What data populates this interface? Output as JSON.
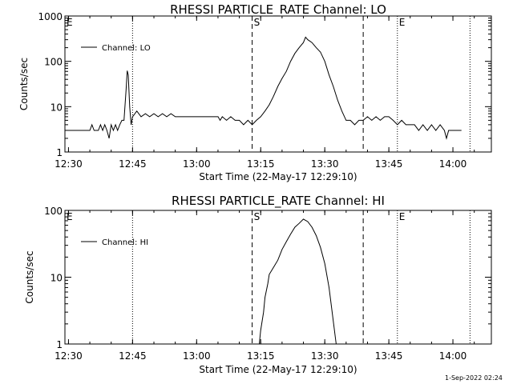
{
  "footer_timestamp": "1-Sep-2022 02:24",
  "chart_data": [
    {
      "type": "line",
      "title": "RHESSI PARTICLE_RATE Channel: LO",
      "xlabel": "Start Time (22-May-17 12:29:10)",
      "ylabel": "Counts/sec",
      "x_ticks": [
        "12:30",
        "12:45",
        "13:00",
        "13:15",
        "13:30",
        "13:45",
        "14:00"
      ],
      "y_ticks": [
        "1",
        "10",
        "100",
        "1000"
      ],
      "y_scale": "log",
      "ylim": [
        1,
        1000
      ],
      "xlim": [
        "12:29:10",
        "14:09"
      ],
      "grid": false,
      "legend_placement": "top-left",
      "series": [
        {
          "name": "Channel: LO",
          "points": [
            [
              "12:29:10",
              3
            ],
            [
              "12:35",
              3
            ],
            [
              "12:35:30",
              4
            ],
            [
              "12:36",
              3
            ],
            [
              "12:37",
              3
            ],
            [
              "12:37:30",
              4
            ],
            [
              "12:38",
              3
            ],
            [
              "12:38:30",
              4
            ],
            [
              "12:39",
              3
            ],
            [
              "12:39:30",
              2
            ],
            [
              "12:40",
              4
            ],
            [
              "12:40:30",
              3
            ],
            [
              "12:41",
              4
            ],
            [
              "12:41:30",
              3
            ],
            [
              "12:42",
              4
            ],
            [
              "12:42:30",
              5
            ],
            [
              "12:43",
              5
            ],
            [
              "12:43:30",
              25
            ],
            [
              "12:43:45",
              62
            ],
            [
              "12:44",
              50
            ],
            [
              "12:44:20",
              10
            ],
            [
              "12:44:40",
              4
            ],
            [
              "12:45",
              6
            ],
            [
              "12:46",
              8
            ],
            [
              "12:47",
              6
            ],
            [
              "12:48",
              7
            ],
            [
              "12:49",
              6
            ],
            [
              "12:50",
              7
            ],
            [
              "12:51",
              6
            ],
            [
              "12:52",
              7
            ],
            [
              "12:53",
              6
            ],
            [
              "12:54",
              7
            ],
            [
              "12:55",
              6
            ],
            [
              "13:05",
              6
            ],
            [
              "13:05:30",
              5
            ],
            [
              "13:06",
              6
            ],
            [
              "13:07",
              5
            ],
            [
              "13:08",
              6
            ],
            [
              "13:09",
              5
            ],
            [
              "13:10",
              5
            ],
            [
              "13:11",
              4
            ],
            [
              "13:12",
              5
            ],
            [
              "13:13",
              4
            ],
            [
              "13:14",
              5
            ],
            [
              "13:15",
              6
            ],
            [
              "13:16",
              8
            ],
            [
              "13:17",
              11
            ],
            [
              "13:18",
              17
            ],
            [
              "13:19",
              28
            ],
            [
              "13:20",
              42
            ],
            [
              "13:21",
              60
            ],
            [
              "13:22",
              100
            ],
            [
              "13:23",
              150
            ],
            [
              "13:24",
              200
            ],
            [
              "13:25",
              260
            ],
            [
              "13:25:30",
              340
            ],
            [
              "13:26",
              300
            ],
            [
              "13:27",
              260
            ],
            [
              "13:28",
              200
            ],
            [
              "13:29",
              160
            ],
            [
              "13:30",
              100
            ],
            [
              "13:31",
              50
            ],
            [
              "13:32",
              28
            ],
            [
              "13:33",
              14
            ],
            [
              "13:34",
              8
            ],
            [
              "13:35",
              5
            ],
            [
              "13:36",
              5
            ],
            [
              "13:37",
              4
            ],
            [
              "13:38",
              5
            ],
            [
              "13:39",
              5
            ],
            [
              "13:40",
              6
            ],
            [
              "13:41",
              5
            ],
            [
              "13:42",
              6
            ],
            [
              "13:43",
              5
            ],
            [
              "13:44",
              6
            ],
            [
              "13:45",
              6
            ],
            [
              "13:46",
              5
            ],
            [
              "13:47",
              4
            ],
            [
              "13:48",
              5
            ],
            [
              "13:49",
              4
            ],
            [
              "13:50",
              4
            ],
            [
              "13:51",
              4
            ],
            [
              "13:52",
              3
            ],
            [
              "13:53",
              4
            ],
            [
              "13:54",
              3
            ],
            [
              "13:55",
              4
            ],
            [
              "13:56",
              3
            ],
            [
              "13:57",
              4
            ],
            [
              "13:58",
              3
            ],
            [
              "13:58:30",
              2
            ],
            [
              "13:59",
              3
            ],
            [
              "14:02",
              3
            ]
          ]
        }
      ],
      "markers": {
        "dashed": [
          "13:13",
          "13:39"
        ],
        "dotted": [
          "12:45",
          "13:47",
          "14:04"
        ],
        "labels": [
          {
            "text": "E",
            "at": "12:29:10"
          },
          {
            "text": "S",
            "at": "13:13"
          },
          {
            "text": "E",
            "at": "13:47"
          }
        ]
      }
    },
    {
      "type": "line",
      "title": "RHESSI PARTICLE_RATE Channel: HI",
      "xlabel": "Start Time (22-May-17 12:29:10)",
      "ylabel": "Counts/sec",
      "x_ticks": [
        "12:30",
        "12:45",
        "13:00",
        "13:15",
        "13:30",
        "13:45",
        "14:00"
      ],
      "y_ticks": [
        "1",
        "10",
        "100"
      ],
      "y_scale": "log",
      "ylim": [
        1,
        100
      ],
      "xlim": [
        "12:29:10",
        "14:09"
      ],
      "grid": false,
      "legend_placement": "top-left",
      "series": [
        {
          "name": "Channel: HI",
          "points": [
            [
              "13:14:40",
              1
            ],
            [
              "13:15",
              1.6
            ],
            [
              "13:15:40",
              3
            ],
            [
              "13:16",
              5
            ],
            [
              "13:16:40",
              8
            ],
            [
              "13:17",
              11
            ],
            [
              "13:18",
              14
            ],
            [
              "13:19",
              18
            ],
            [
              "13:20",
              26
            ],
            [
              "13:21",
              34
            ],
            [
              "13:22",
              44
            ],
            [
              "13:23",
              56
            ],
            [
              "13:24",
              64
            ],
            [
              "13:25",
              74
            ],
            [
              "13:26",
              68
            ],
            [
              "13:27",
              56
            ],
            [
              "13:28",
              42
            ],
            [
              "13:29",
              28
            ],
            [
              "13:30",
              16
            ],
            [
              "13:31",
              7
            ],
            [
              "13:32",
              2.2
            ],
            [
              "13:32:40",
              1
            ]
          ]
        }
      ],
      "markers": {
        "dashed": [
          "13:13",
          "13:39"
        ],
        "dotted": [
          "12:45",
          "13:47",
          "14:04"
        ],
        "labels": [
          {
            "text": "E",
            "at": "12:29:10"
          },
          {
            "text": "S",
            "at": "13:13"
          },
          {
            "text": "E",
            "at": "13:47"
          }
        ]
      }
    }
  ]
}
